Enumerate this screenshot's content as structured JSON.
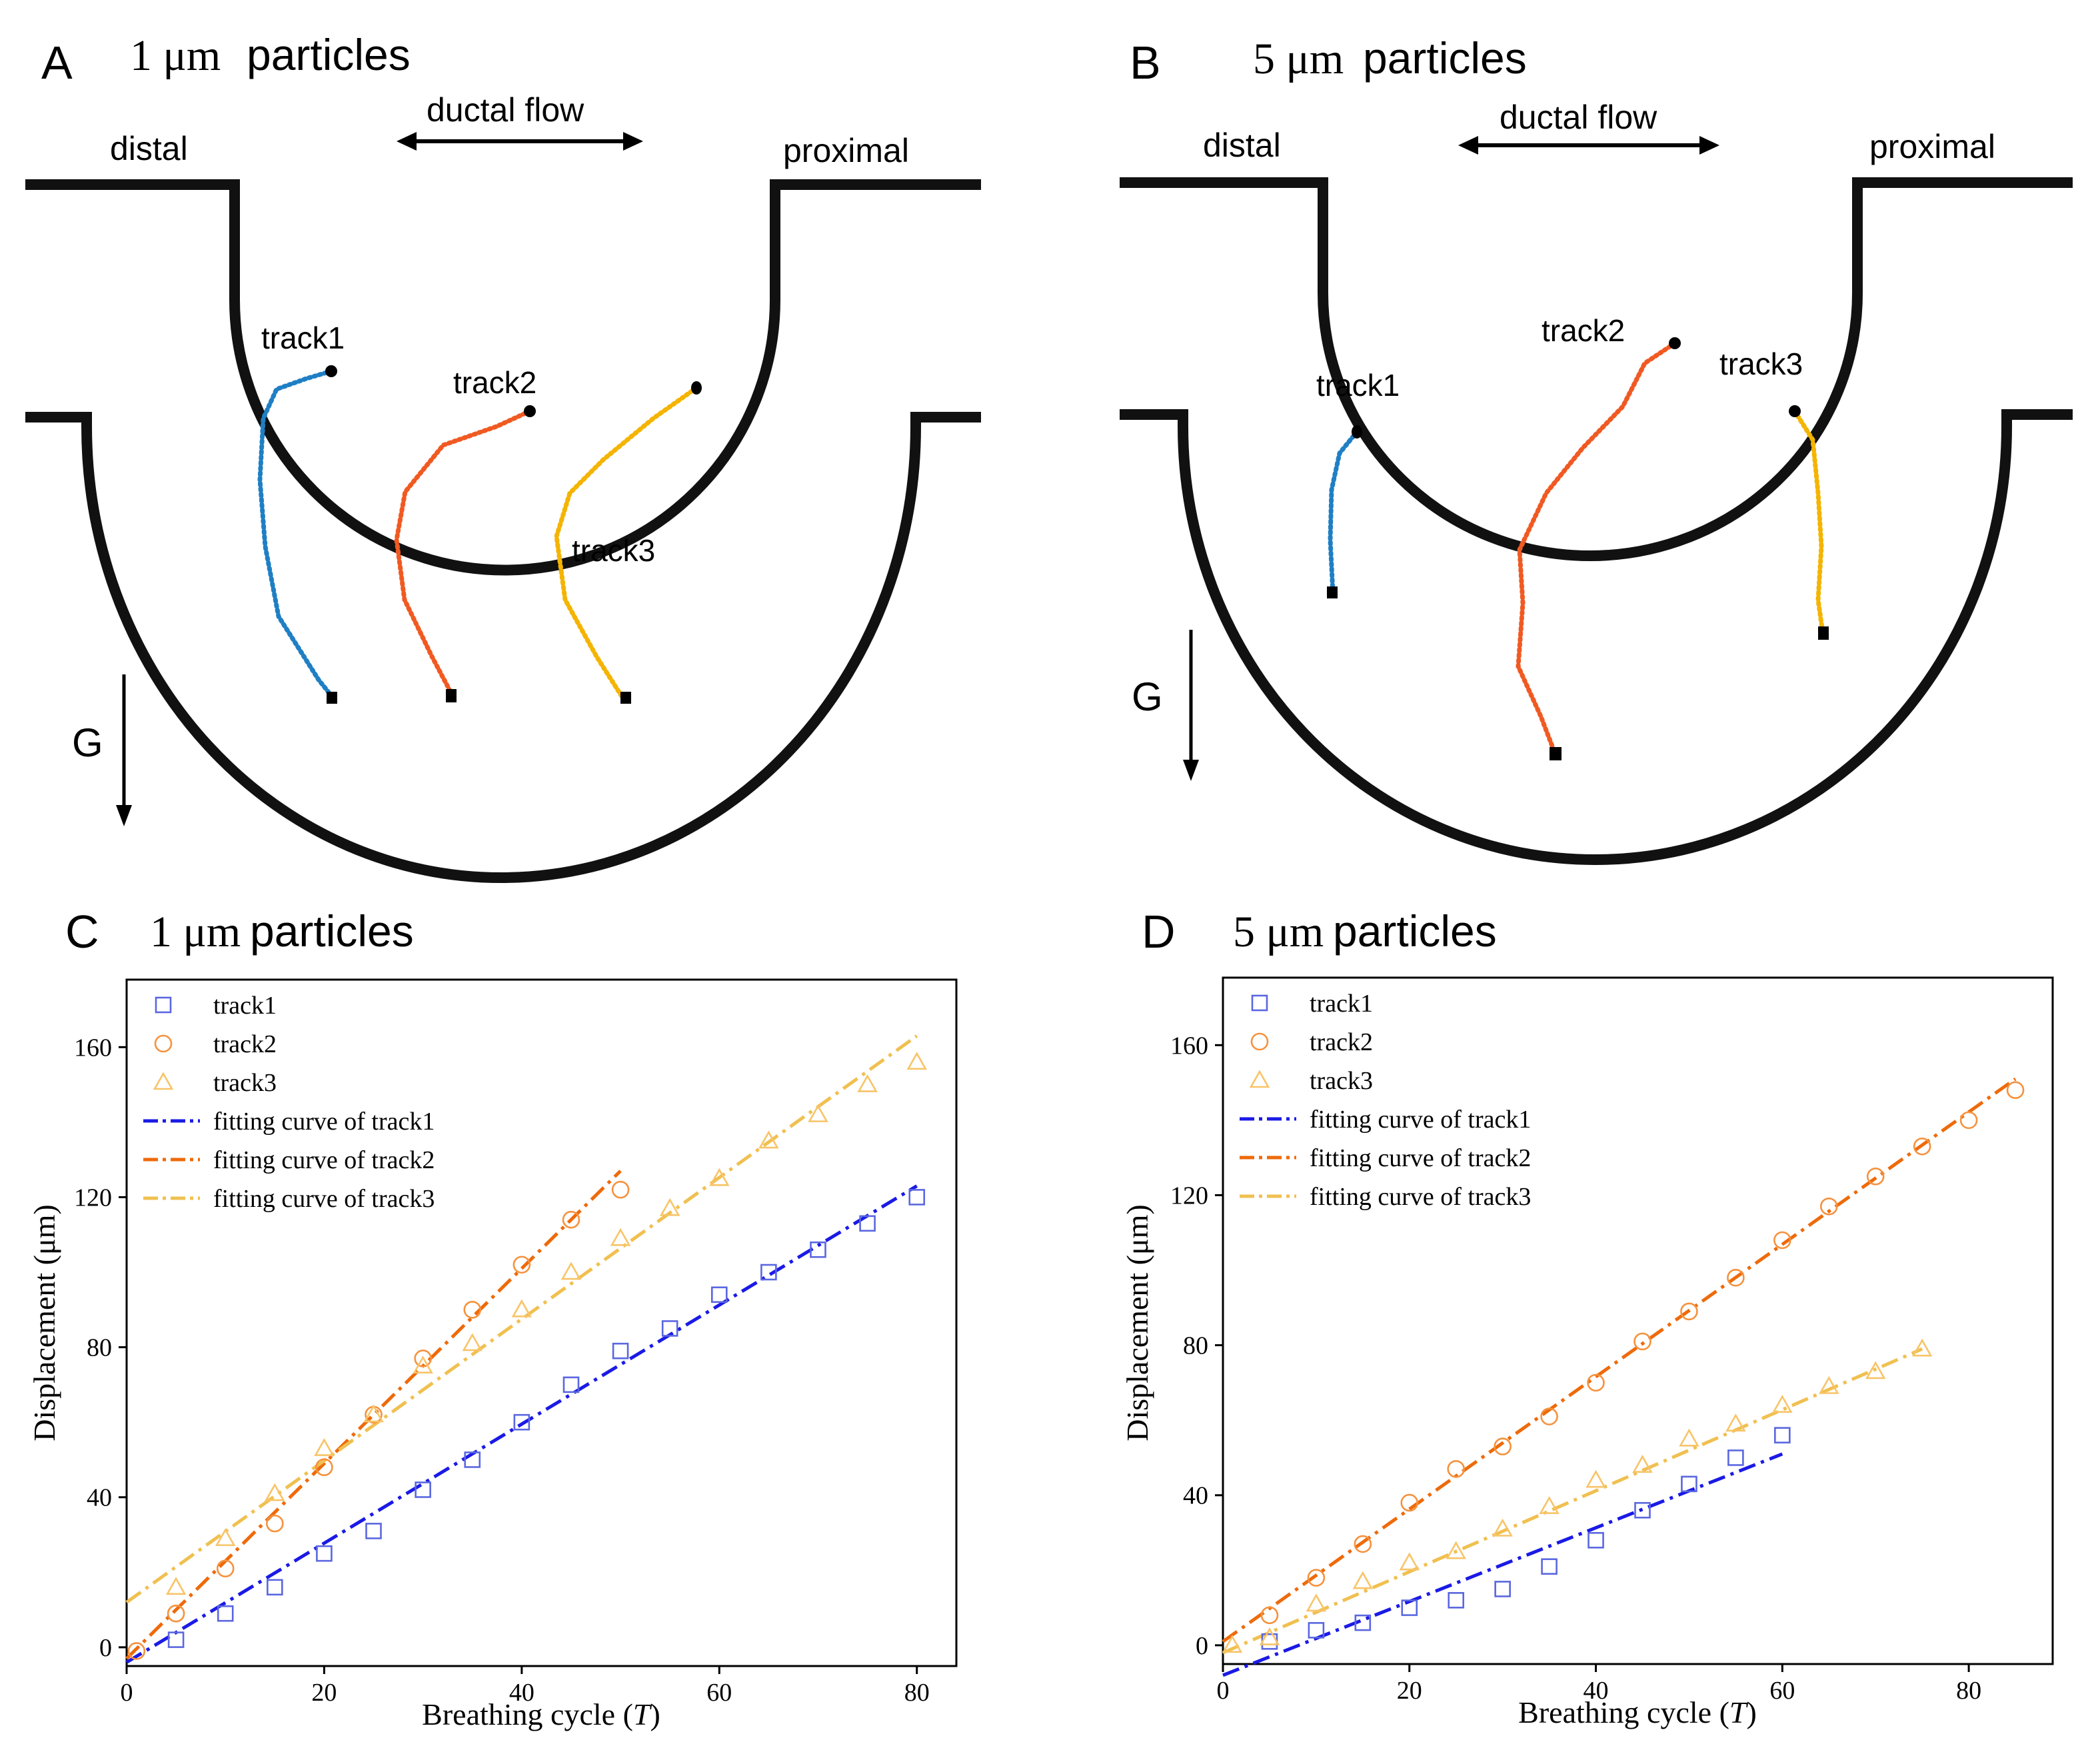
{
  "panels": {
    "A": {
      "letter": "A",
      "mu": "1 μm",
      "title_word": "particles",
      "distal": "distal",
      "proximal": "proximal",
      "flow": "ductal flow",
      "gravity": "G",
      "tracks": [
        {
          "label": "track1",
          "color": "#1f7fc4"
        },
        {
          "label": "track2",
          "color": "#f05a22"
        },
        {
          "label": "track3",
          "color": "#f4b400"
        }
      ]
    },
    "B": {
      "letter": "B",
      "mu": "5 μm",
      "title_word": "particles",
      "distal": "distal",
      "proximal": "proximal",
      "flow": "ductal flow",
      "gravity": "G",
      "tracks": [
        {
          "label": "track1",
          "color": "#1f7fc4"
        },
        {
          "label": "track2",
          "color": "#f05a22"
        },
        {
          "label": "track3",
          "color": "#f4b400"
        }
      ]
    }
  },
  "chart_data": [
    {
      "panel": "C",
      "letter": "C",
      "title": "1 μm particles",
      "mu": "1 μm",
      "title_word": "particles",
      "type": "scatter",
      "xlabel": "Breathing cycle (T)",
      "xlabel_main": "Breathing cycle (",
      "xlabel_var": "T",
      "xlabel_end": ")",
      "ylabel": "Displacement (μm)",
      "xlim": [
        0,
        84
      ],
      "ylim": [
        -5,
        178
      ],
      "xticks": [
        0,
        20,
        40,
        60,
        80
      ],
      "yticks": [
        0,
        40,
        80,
        120,
        160
      ],
      "legend": "top-left",
      "series": [
        {
          "name": "track1",
          "marker": "square",
          "color": "#5a67e0",
          "x": [
            5,
            10,
            15,
            20,
            25,
            30,
            35,
            40,
            45,
            50,
            55,
            60,
            65,
            70,
            75,
            80
          ],
          "y": [
            2,
            9,
            16,
            25,
            31,
            42,
            50,
            60,
            70,
            79,
            85,
            94,
            100,
            106,
            113,
            120
          ]
        },
        {
          "name": "track2",
          "marker": "circle",
          "color": "#f5923e",
          "x": [
            1,
            5,
            10,
            15,
            20,
            25,
            30,
            35,
            40,
            45,
            50
          ],
          "y": [
            -1,
            9,
            21,
            33,
            48,
            62,
            77,
            90,
            102,
            114,
            122
          ]
        },
        {
          "name": "track3",
          "marker": "triangle",
          "color": "#f8c468",
          "x": [
            5,
            10,
            15,
            20,
            25,
            30,
            35,
            40,
            45,
            50,
            55,
            60,
            65,
            70,
            75,
            80
          ],
          "y": [
            16,
            29,
            41,
            53,
            62,
            75,
            81,
            90,
            100,
            109,
            117,
            125,
            135,
            142,
            150,
            156
          ]
        }
      ],
      "fits": [
        {
          "name": "fitting curve of track1",
          "color": "#1a1ae6",
          "x": [
            0,
            80
          ],
          "y": [
            -4,
            123
          ]
        },
        {
          "name": "fitting curve of track2",
          "color": "#ee6a0a",
          "x": [
            0,
            50
          ],
          "y": [
            -3,
            127
          ]
        },
        {
          "name": "fitting curve of track3",
          "color": "#f0c050",
          "x": [
            0,
            80
          ],
          "y": [
            12,
            163
          ]
        }
      ]
    },
    {
      "panel": "D",
      "letter": "D",
      "title": "5 μm particles",
      "mu": "5 μm",
      "title_word": "particles",
      "type": "scatter",
      "xlabel": "Breathing cycle (T)",
      "xlabel_main": "Breathing cycle (",
      "xlabel_var": "T",
      "xlabel_end": ")",
      "ylabel": "Displacement (μm)",
      "xlim": [
        0,
        89
      ],
      "ylim": [
        -5,
        178
      ],
      "xticks": [
        0,
        20,
        40,
        60,
        80
      ],
      "yticks": [
        0,
        40,
        80,
        120,
        160
      ],
      "legend": "top-left",
      "series": [
        {
          "name": "track1",
          "marker": "square",
          "color": "#5a67e0",
          "x": [
            5,
            10,
            15,
            20,
            25,
            30,
            35,
            40,
            45,
            50,
            55,
            60
          ],
          "y": [
            1,
            4,
            6,
            10,
            12,
            15,
            21,
            28,
            36,
            43,
            50,
            56
          ]
        },
        {
          "name": "track2",
          "marker": "circle",
          "color": "#f5923e",
          "x": [
            5,
            10,
            15,
            20,
            25,
            30,
            35,
            40,
            45,
            50,
            55,
            60,
            65,
            70,
            75,
            80,
            85
          ],
          "y": [
            8,
            18,
            27,
            38,
            47,
            53,
            61,
            70,
            81,
            89,
            98,
            108,
            117,
            125,
            133,
            140,
            148
          ]
        },
        {
          "name": "track3",
          "marker": "triangle",
          "color": "#f8c468",
          "x": [
            1,
            5,
            10,
            15,
            20,
            25,
            30,
            35,
            40,
            45,
            50,
            55,
            60,
            65,
            70,
            75
          ],
          "y": [
            0,
            2,
            11,
            17,
            22,
            25,
            31,
            37,
            44,
            48,
            55,
            59,
            64,
            69,
            73,
            79
          ]
        }
      ],
      "fits": [
        {
          "name": "fitting curve of track1",
          "color": "#1a1ae6",
          "x": [
            0,
            60
          ],
          "y": [
            -8,
            51
          ]
        },
        {
          "name": "fitting curve of track2",
          "color": "#ee6a0a",
          "x": [
            0,
            85
          ],
          "y": [
            1,
            151
          ]
        },
        {
          "name": "fitting curve of track3",
          "color": "#f0c050",
          "x": [
            0,
            75
          ],
          "y": [
            -2,
            79
          ]
        }
      ]
    }
  ]
}
